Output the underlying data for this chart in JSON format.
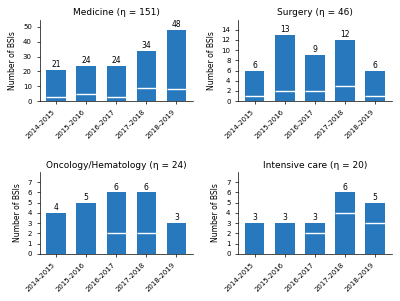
{
  "subplots": [
    {
      "title": "Medicine (η = 151)",
      "values": [
        21,
        24,
        24,
        34,
        48
      ],
      "white_line_y": [
        3,
        5,
        3,
        9,
        8
      ],
      "ylim": [
        0,
        55
      ],
      "yticks": [
        0,
        10,
        20,
        30,
        40,
        50
      ]
    },
    {
      "title": "Surgery (η = 46)",
      "values": [
        6,
        13,
        9,
        12,
        6
      ],
      "white_line_y": [
        1,
        2,
        2,
        3,
        1
      ],
      "ylim": [
        0,
        16
      ],
      "yticks": [
        0,
        2,
        4,
        6,
        8,
        10,
        12,
        14
      ]
    },
    {
      "title": "Oncology/Hematology (η = 24)",
      "values": [
        4,
        5,
        6,
        6,
        3
      ],
      "white_line_y": [
        0,
        0,
        2,
        2,
        0
      ],
      "ylim": [
        0,
        8
      ],
      "yticks": [
        0,
        1,
        2,
        3,
        4,
        5,
        6,
        7
      ]
    },
    {
      "title": "Intensive care (η = 20)",
      "values": [
        3,
        3,
        3,
        6,
        5
      ],
      "white_line_y": [
        0,
        0,
        2,
        4,
        3
      ],
      "ylim": [
        0,
        8
      ],
      "yticks": [
        0,
        1,
        2,
        3,
        4,
        5,
        6,
        7
      ]
    }
  ],
  "categories": [
    "2014-2015",
    "2015-2016",
    "2016-2017",
    "2017-2018",
    "2018-2019"
  ],
  "bar_color": "#2878BE",
  "line_color": "#FFFFFF",
  "ylabel": "Number of BSIs",
  "title_fontsize": 6.5,
  "label_fontsize": 5.5,
  "tick_fontsize": 5.0,
  "value_fontsize": 5.5,
  "background_color": "#FFFFFF"
}
